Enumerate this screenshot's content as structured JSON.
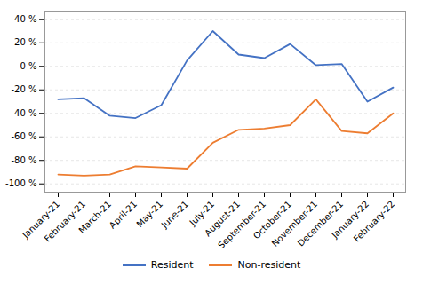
{
  "chart_data": {
    "type": "line",
    "categories": [
      "January-21",
      "February-21",
      "March-21",
      "April-21",
      "May-21",
      "June-21",
      "July-21",
      "August-21",
      "September-21",
      "October-21",
      "November-21",
      "December-21",
      "January-22",
      "February-22"
    ],
    "series": [
      {
        "name": "Resident",
        "color": "#4472C4",
        "values": [
          -28,
          -27,
          -42,
          -44,
          -33,
          5,
          30,
          10,
          7,
          19,
          1,
          2,
          -30,
          -18
        ]
      },
      {
        "name": "Non-resident",
        "color": "#ED7D31",
        "values": [
          -92,
          -93,
          -92,
          -85,
          -86,
          -87,
          -65,
          -54,
          -53,
          -50,
          -28,
          -55,
          -57,
          -40
        ]
      }
    ],
    "ylim": [
      -107,
      47
    ],
    "yticks": [
      {
        "value": -100,
        "label": "-100 %"
      },
      {
        "value": -80,
        "label": "-80 %"
      },
      {
        "value": -60,
        "label": "-60 %"
      },
      {
        "value": -40,
        "label": "-40 %"
      },
      {
        "value": -20,
        "label": "-20 %"
      },
      {
        "value": 0,
        "label": "0 %"
      },
      {
        "value": 20,
        "label": "20 %"
      },
      {
        "value": 40,
        "label": "40 %"
      }
    ],
    "grid": true,
    "legend": "bottom"
  }
}
